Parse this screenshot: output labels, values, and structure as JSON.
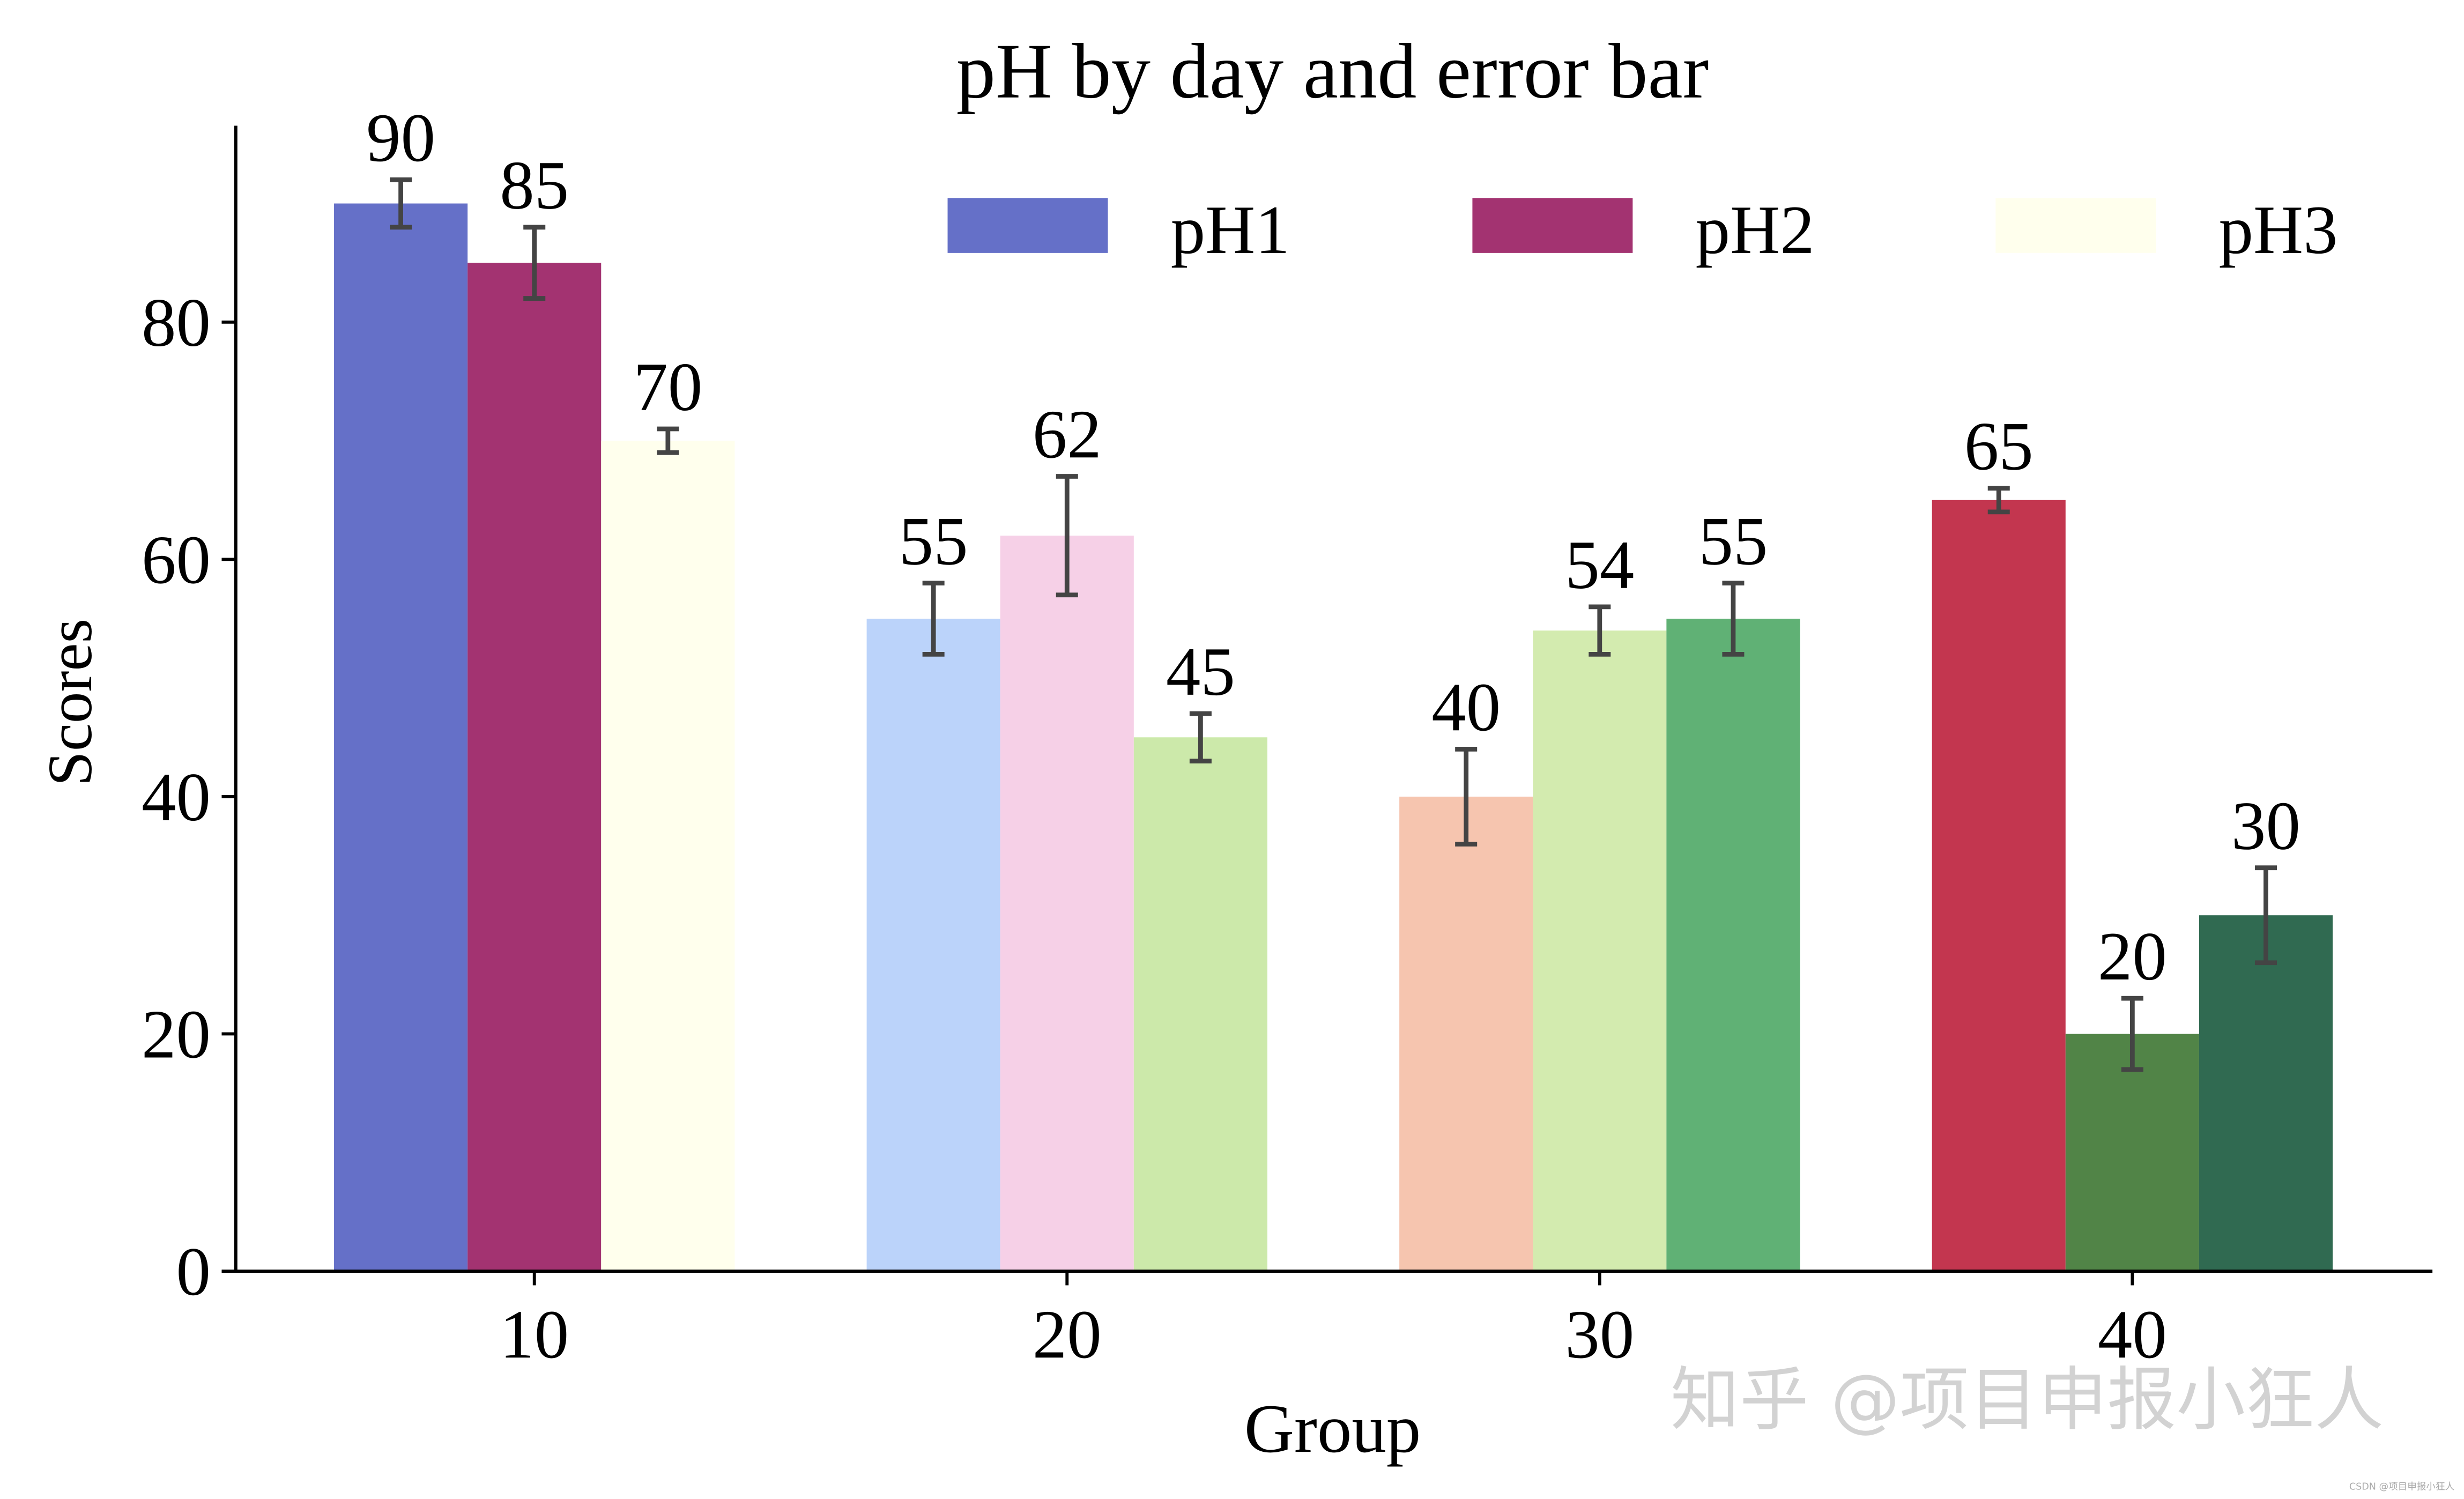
{
  "chart_data": {
    "type": "bar",
    "title": "pH by day and error bar",
    "xlabel": "Group",
    "ylabel": "Scores",
    "categories": [
      "10",
      "20",
      "30",
      "40"
    ],
    "ylim": [
      0,
      97
    ],
    "yticks": [
      "0",
      "20",
      "40",
      "60",
      "80"
    ],
    "legend_position": "top-right",
    "grid": false,
    "series": [
      {
        "name": "pH1",
        "values": [
          90,
          55,
          40,
          65
        ],
        "errors": [
          2,
          3,
          4,
          1
        ],
        "colors": [
          "#6570C8",
          "#BBD3FA",
          "#F6C5AF",
          "#C3364F"
        ]
      },
      {
        "name": "pH2",
        "values": [
          85,
          62,
          54,
          20
        ],
        "errors": [
          3,
          5,
          2,
          3
        ],
        "colors": [
          "#A33371",
          "#F6D0E7",
          "#D3EBAF",
          "#518447"
        ]
      },
      {
        "name": "pH3",
        "values": [
          70,
          45,
          55,
          30
        ],
        "errors": [
          1,
          2,
          3,
          4
        ],
        "colors": [
          "#FFFFED",
          "#CCE9AA",
          "#60B175",
          "#306A51"
        ]
      }
    ],
    "error_bar_color": "#444444"
  },
  "watermark": "知乎 @项目申报小狂人",
  "small_watermark": "CSDN @项目申报小狂人"
}
